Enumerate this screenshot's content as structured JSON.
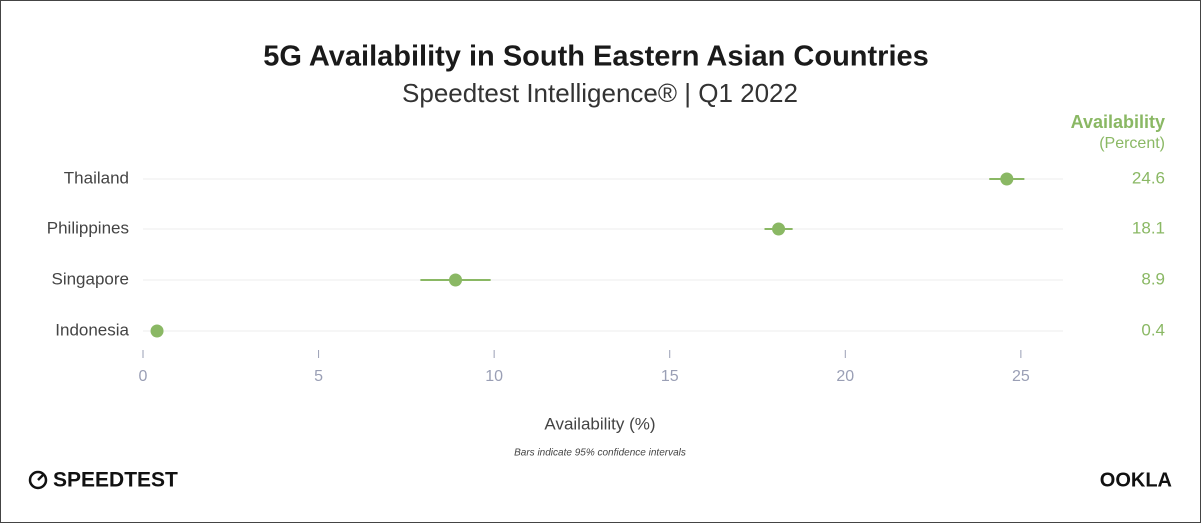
{
  "chart_data": {
    "type": "dot-errorbar",
    "title": "5G Availability in South Eastern Asian Countries",
    "subtitle": "Speedtest Intelligence® | Q1 2022",
    "value_header": "Availability",
    "value_subheader": "(Percent)",
    "categories": [
      "Thailand",
      "Philippines",
      "Singapore",
      "Indonesia"
    ],
    "values": [
      24.6,
      18.1,
      8.9,
      0.4
    ],
    "errors": [
      0.5,
      0.4,
      1.0,
      0.1
    ],
    "color": "#8ab864",
    "xlim": [
      0,
      26.2
    ],
    "xticks": [
      0,
      5,
      10,
      15,
      20,
      25
    ],
    "xlabel": "Availability (%)",
    "note": "Bars indicate 95% confidence intervals",
    "brand_left": "SPEEDTEST",
    "brand_right": "OOKLA",
    "grid": true
  }
}
